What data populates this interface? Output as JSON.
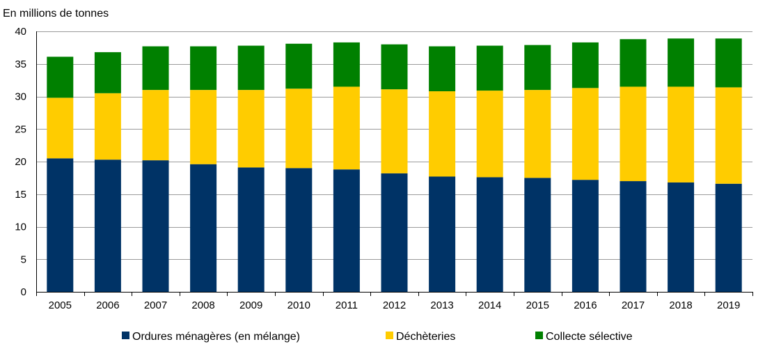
{
  "chart_data": {
    "type": "bar",
    "stacked": true,
    "unit_label": "En millions de tonnes",
    "title": "",
    "xlabel": "",
    "ylabel": "",
    "ylim": [
      0,
      40
    ],
    "yticks": [
      0,
      5,
      10,
      15,
      20,
      25,
      30,
      35,
      40
    ],
    "grid": true,
    "legend_position": "bottom",
    "categories": [
      "2005",
      "2006",
      "2007",
      "2008",
      "2009",
      "2010",
      "2011",
      "2012",
      "2013",
      "2014",
      "2015",
      "2016",
      "2017",
      "2018",
      "2019"
    ],
    "series": [
      {
        "name": "Ordures ménagères (en mélange)",
        "color": "#003366",
        "values": [
          20.5,
          20.3,
          20.2,
          19.6,
          19.1,
          19.0,
          18.8,
          18.2,
          17.7,
          17.6,
          17.5,
          17.2,
          17.0,
          16.8,
          16.6
        ]
      },
      {
        "name": "Déchèteries",
        "color": "#ffcc00",
        "values": [
          9.3,
          10.2,
          10.8,
          11.4,
          11.9,
          12.2,
          12.7,
          12.9,
          13.1,
          13.3,
          13.5,
          14.1,
          14.5,
          14.7,
          14.8
        ]
      },
      {
        "name": "Collecte sélective",
        "color": "#008000",
        "values": [
          6.3,
          6.3,
          6.7,
          6.7,
          6.8,
          6.9,
          6.8,
          6.9,
          6.9,
          6.9,
          6.9,
          7.0,
          7.3,
          7.4,
          7.5
        ]
      }
    ]
  }
}
